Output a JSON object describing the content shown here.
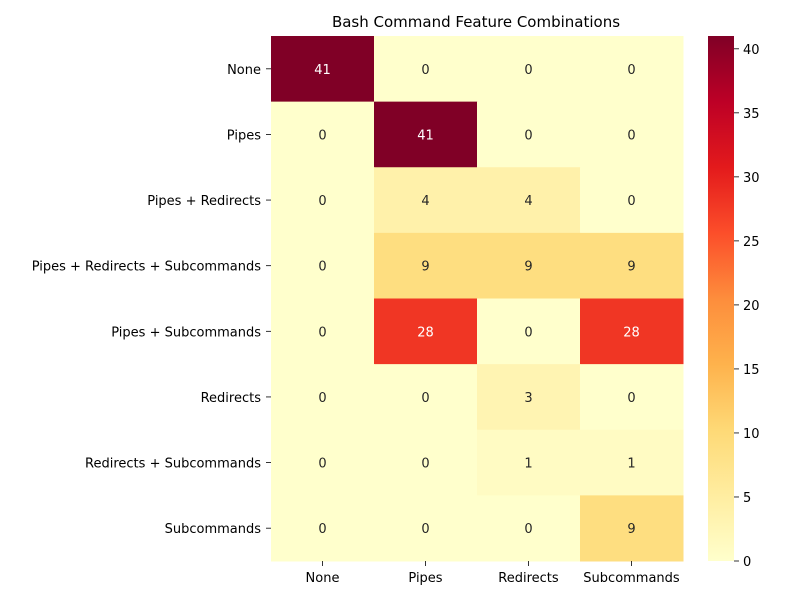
{
  "chart_data": {
    "type": "heatmap",
    "title": "Bash Command Feature Combinations",
    "xlabel": "",
    "ylabel": "",
    "x_categories": [
      "None",
      "Pipes",
      "Redirects",
      "Subcommands"
    ],
    "y_categories": [
      "None",
      "Pipes",
      "Pipes + Redirects",
      "Pipes + Redirects + Subcommands",
      "Pipes + Subcommands",
      "Redirects",
      "Redirects + Subcommands",
      "Subcommands"
    ],
    "values": [
      [
        41,
        0,
        0,
        0
      ],
      [
        0,
        41,
        0,
        0
      ],
      [
        0,
        4,
        4,
        0
      ],
      [
        0,
        9,
        9,
        9
      ],
      [
        0,
        28,
        0,
        28
      ],
      [
        0,
        0,
        3,
        0
      ],
      [
        0,
        0,
        1,
        1
      ],
      [
        0,
        0,
        0,
        9
      ]
    ],
    "colormap": "YlOrRd",
    "vmin": 0,
    "vmax": 41,
    "colorbar_ticks": [
      0,
      5,
      10,
      15,
      20,
      25,
      30,
      35,
      40
    ],
    "annotations": true,
    "grid": false
  }
}
